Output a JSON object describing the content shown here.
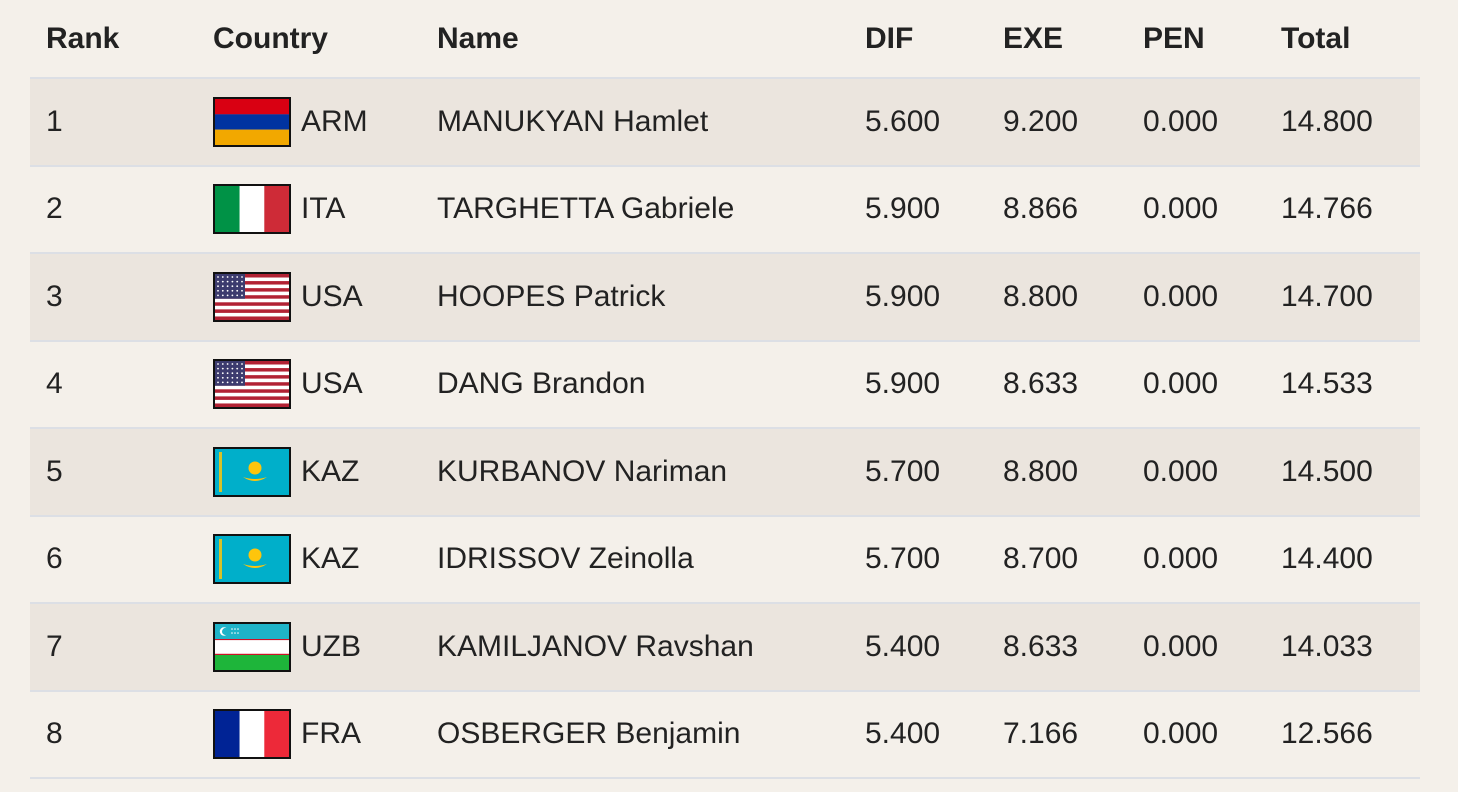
{
  "columns": {
    "rank": "Rank",
    "country": "Country",
    "name": "Name",
    "dif": "DIF",
    "exe": "EXE",
    "pen": "PEN",
    "total": "Total"
  },
  "rows": [
    {
      "rank": "1",
      "flag": "armenia-flag-icon",
      "country": "ARM",
      "name": "MANUKYAN Hamlet",
      "dif": "5.600",
      "exe": "9.200",
      "pen": "0.000",
      "total": "14.800"
    },
    {
      "rank": "2",
      "flag": "italy-flag-icon",
      "country": "ITA",
      "name": "TARGHETTA Gabriele",
      "dif": "5.900",
      "exe": "8.866",
      "pen": "0.000",
      "total": "14.766"
    },
    {
      "rank": "3",
      "flag": "usa-flag-icon",
      "country": "USA",
      "name": "HOOPES Patrick",
      "dif": "5.900",
      "exe": "8.800",
      "pen": "0.000",
      "total": "14.700"
    },
    {
      "rank": "4",
      "flag": "usa-flag-icon",
      "country": "USA",
      "name": "DANG Brandon",
      "dif": "5.900",
      "exe": "8.633",
      "pen": "0.000",
      "total": "14.533"
    },
    {
      "rank": "5",
      "flag": "kazakhstan-flag-icon",
      "country": "KAZ",
      "name": "KURBANOV Nariman",
      "dif": "5.700",
      "exe": "8.800",
      "pen": "0.000",
      "total": "14.500"
    },
    {
      "rank": "6",
      "flag": "kazakhstan-flag-icon",
      "country": "KAZ",
      "name": "IDRISSOV Zeinolla",
      "dif": "5.700",
      "exe": "8.700",
      "pen": "0.000",
      "total": "14.400"
    },
    {
      "rank": "7",
      "flag": "uzbekistan-flag-icon",
      "country": "UZB",
      "name": "KAMILJANOV Ravshan",
      "dif": "5.400",
      "exe": "8.633",
      "pen": "0.000",
      "total": "14.033"
    },
    {
      "rank": "8",
      "flag": "france-flag-icon",
      "country": "FRA",
      "name": "OSBERGER Benjamin",
      "dif": "5.400",
      "exe": "7.166",
      "pen": "0.000",
      "total": "12.566"
    }
  ],
  "colors": {
    "background": "#f4f0ea",
    "stripe": "#ebe5de",
    "divider": "#dcdfe5",
    "text": "#222222"
  }
}
